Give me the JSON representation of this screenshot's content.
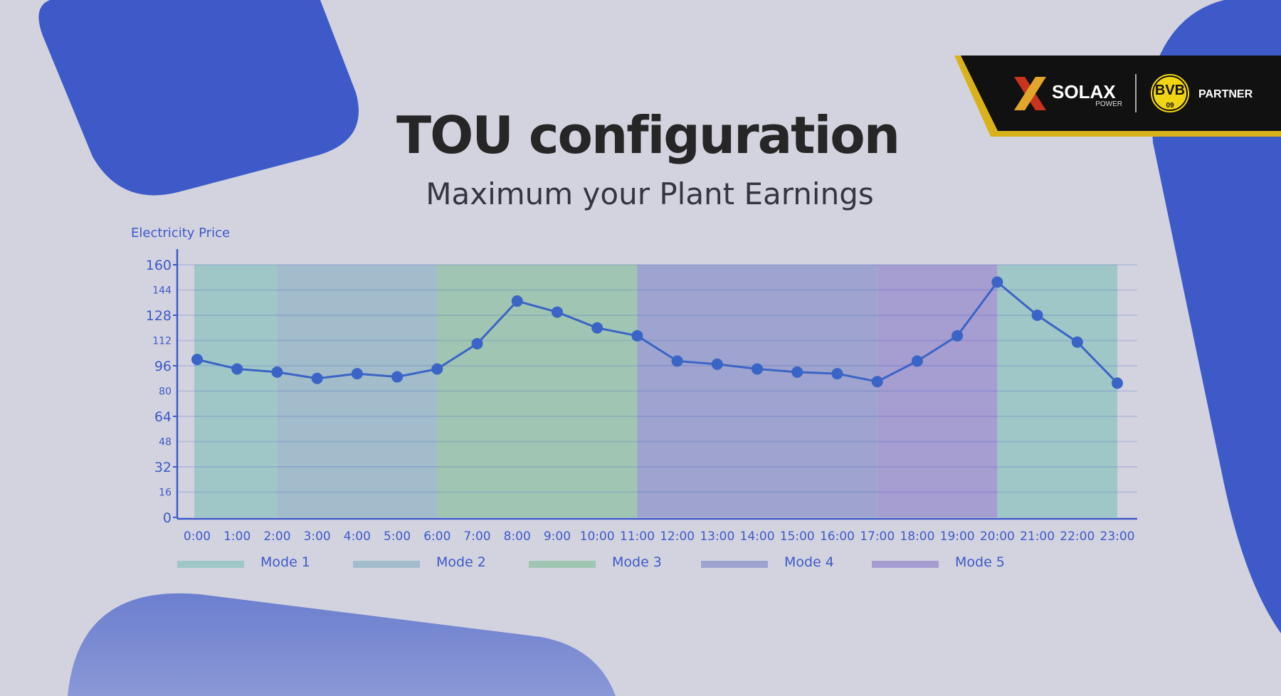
{
  "header": {
    "title": "TOU configuration",
    "subtitle": "Maximum your Plant Earnings"
  },
  "logo": {
    "brand": "SOLAX",
    "brand_sub": "POWER",
    "partner_badge": "BVB 09",
    "partner_label": "PARTNER"
  },
  "colors": {
    "accent": "#3d5ac8",
    "background": "#d3d3df",
    "banner": "#111111",
    "banner_edge": "#d9b21b"
  },
  "chart_data": {
    "type": "line",
    "ylabel": "Electricity Price",
    "ylim": [
      0,
      160
    ],
    "yticks": [
      "0",
      "16",
      "32",
      "48",
      "64",
      "80",
      "96",
      "112",
      "128",
      "144",
      "160"
    ],
    "categories": [
      "0:00",
      "1:00",
      "2:00",
      "3:00",
      "4:00",
      "5:00",
      "6:00",
      "7:00",
      "8:00",
      "9:00",
      "10:00",
      "11:00",
      "12:00",
      "13:00",
      "14:00",
      "15:00",
      "16:00",
      "17:00",
      "18:00",
      "19:00",
      "20:00",
      "21:00",
      "22:00",
      "23:00"
    ],
    "values": [
      100,
      94,
      92,
      88,
      91,
      89,
      94,
      110,
      137,
      130,
      120,
      115,
      99,
      97,
      94,
      92,
      91,
      86,
      99,
      115,
      149,
      128,
      111,
      85
    ],
    "grid": true,
    "legend_position": "bottom",
    "bands": [
      {
        "mode": "Mode 1",
        "start": 0,
        "end": 2
      },
      {
        "mode": "Mode 2",
        "start": 2,
        "end": 6
      },
      {
        "mode": "Mode 3",
        "start": 6,
        "end": 11
      },
      {
        "mode": "Mode 4",
        "start": 11,
        "end": 17
      },
      {
        "mode": "Mode 5",
        "start": 17,
        "end": 20
      },
      {
        "mode": "Mode 1",
        "start": 20,
        "end": 23
      }
    ],
    "legend": [
      {
        "name": "Mode 1",
        "color": "#a0c7c8"
      },
      {
        "name": "Mode 2",
        "color": "#a2bccb"
      },
      {
        "name": "Mode 3",
        "color": "#a0c6b3"
      },
      {
        "name": "Mode 4",
        "color": "#9ea4cf"
      },
      {
        "name": "Mode 5",
        "color": "#a69dd1"
      }
    ]
  }
}
